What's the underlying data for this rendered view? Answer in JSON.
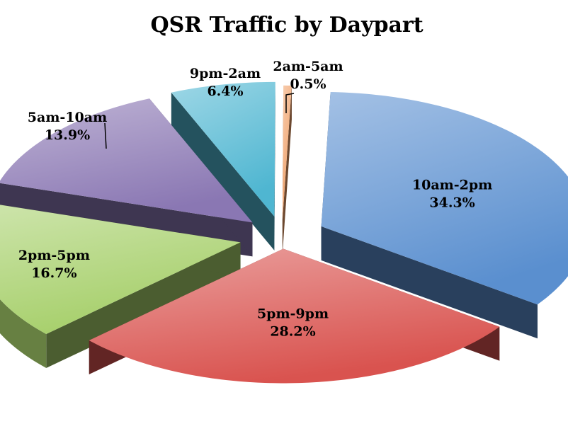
{
  "chart_data": {
    "type": "pie",
    "style": "3d-exploded",
    "title": "QSR Traffic by Daypart",
    "unit": "%",
    "slices": [
      {
        "label": "10am-2pm",
        "value": 34.3,
        "value_text": "34.3%",
        "color": "#5a8fcf"
      },
      {
        "label": "5pm-9pm",
        "value": 28.2,
        "value_text": "28.2%",
        "color": "#d9534f"
      },
      {
        "label": "2pm-5pm",
        "value": 16.7,
        "value_text": "16.7%",
        "color": "#a6cf6a"
      },
      {
        "label": "5am-10am",
        "value": 13.9,
        "value_text": "13.9%",
        "color": "#8a77b3"
      },
      {
        "label": "9pm-2am",
        "value": 6.4,
        "value_text": "6.4%",
        "color": "#4fb6d1"
      },
      {
        "label": "2am-5am",
        "value": 0.5,
        "value_text": "0.5%",
        "color": "#f0a068"
      }
    ],
    "legend": "none"
  }
}
